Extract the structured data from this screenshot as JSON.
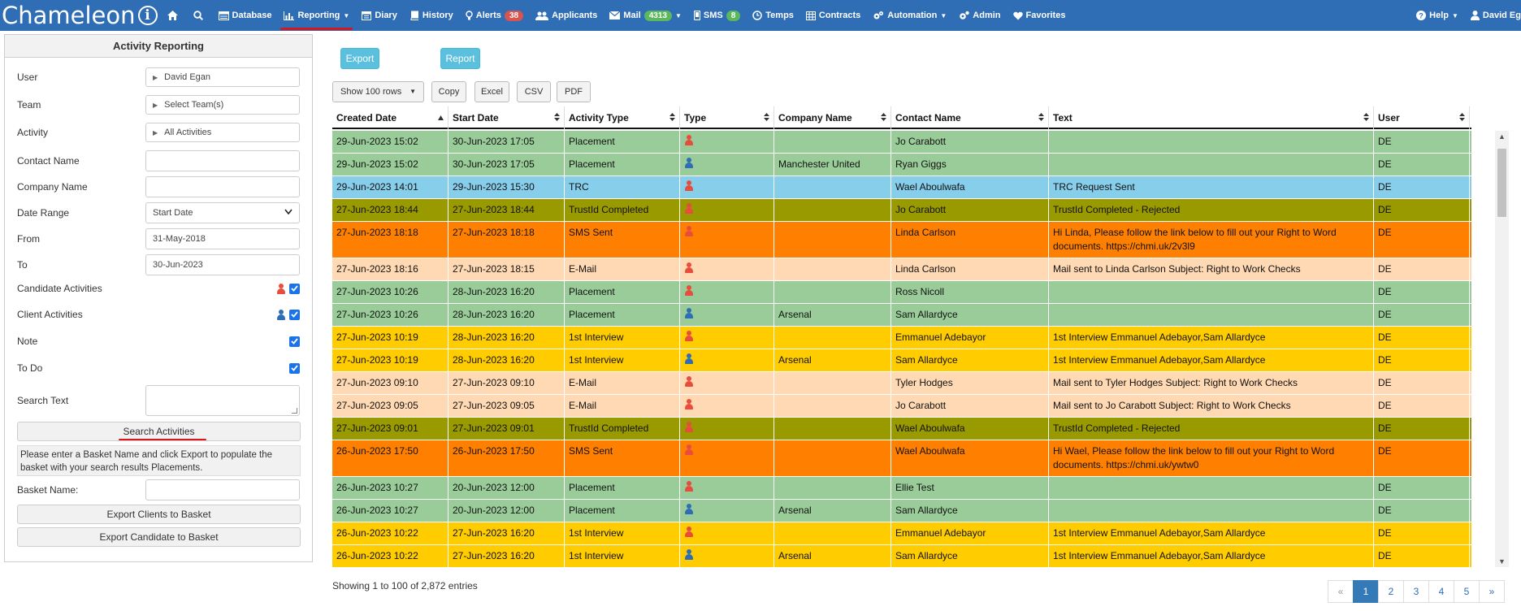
{
  "app": {
    "logo_text": "Chameleon",
    "logo_badge": "i"
  },
  "nav": {
    "items": [
      {
        "icon": "home-icon",
        "label": ""
      },
      {
        "icon": "search-icon",
        "label": ""
      },
      {
        "icon": "database-icon",
        "label": "Database"
      },
      {
        "icon": "chart-icon",
        "label": "Reporting",
        "dropdown": true,
        "active": true
      },
      {
        "icon": "calendar-icon",
        "label": "Diary"
      },
      {
        "icon": "book-icon",
        "label": "History"
      },
      {
        "icon": "bulb-icon",
        "label": "Alerts",
        "badge": "38",
        "badge_color": "red"
      },
      {
        "icon": "users-icon",
        "label": "Applicants"
      },
      {
        "icon": "envelope-icon",
        "label": "Mail",
        "badge": "4313",
        "badge_color": "green",
        "dropdown": true
      },
      {
        "icon": "mobile-icon",
        "label": "SMS",
        "badge": "8",
        "badge_color": "green"
      },
      {
        "icon": "clock-icon",
        "label": "Temps"
      },
      {
        "icon": "table-icon",
        "label": "Contracts"
      },
      {
        "icon": "cogs-icon",
        "label": "Automation",
        "dropdown": true
      },
      {
        "icon": "gear-icon",
        "label": "Admin"
      },
      {
        "icon": "heart-icon",
        "label": "Favorites"
      }
    ],
    "help_label": "Help",
    "user_label": "David Eg"
  },
  "sidebar": {
    "title": "Activity Reporting",
    "user_label": "User",
    "user_value": "David Egan",
    "team_label": "Team",
    "team_value": "Select Team(s)",
    "activity_label": "Activity",
    "activity_value": "All Activities",
    "contact_label": "Contact Name",
    "contact_value": "",
    "company_label": "Company Name",
    "company_value": "",
    "date_range_label": "Date Range",
    "date_range_value": "Start Date",
    "from_label": "From",
    "from_value": "31-May-2018",
    "to_label": "To",
    "to_value": "30-Jun-2023",
    "candidate_label": "Candidate Activities",
    "client_label": "Client Activities",
    "note_label": "Note",
    "todo_label": "To Do",
    "search_text_label": "Search Text",
    "search_button": "Search Activities",
    "info_text": "Please enter a Basket Name and click Export to populate the basket with your search results Placements.",
    "basket_label": "Basket Name:",
    "export_clients_button": "Export Clients to Basket",
    "export_candidate_button": "Export Candidate to Basket"
  },
  "toolbar": {
    "export_button": "Export",
    "report_button": "Report",
    "show_rows": "Show 100 rows",
    "copy": "Copy",
    "excel": "Excel",
    "csv": "CSV",
    "pdf": "PDF"
  },
  "table": {
    "columns": [
      "Created Date",
      "Start Date",
      "Activity Type",
      "Type",
      "Company Name",
      "Contact Name",
      "Text",
      "User"
    ],
    "rows": [
      {
        "created": "29-Jun-2023 15:02",
        "start": "30-Jun-2023 17:05",
        "activity": "Placement",
        "kind": "candidate",
        "company": "",
        "contact": "Jo Carabott",
        "text": "",
        "user": "DE",
        "class": "placement"
      },
      {
        "created": "29-Jun-2023 15:02",
        "start": "30-Jun-2023 17:05",
        "activity": "Placement",
        "kind": "client",
        "company": "Manchester United",
        "contact": "Ryan Giggs",
        "text": "",
        "user": "DE",
        "class": "placement"
      },
      {
        "created": "29-Jun-2023 14:01",
        "start": "29-Jun-2023 15:30",
        "activity": "TRC",
        "kind": "candidate",
        "company": "",
        "contact": "Wael Aboulwafa",
        "text": "TRC Request Sent",
        "user": "DE",
        "class": "trc"
      },
      {
        "created": "27-Jun-2023 18:44",
        "start": "27-Jun-2023 18:44",
        "activity": "TrustId Completed",
        "kind": "candidate",
        "company": "",
        "contact": "Jo Carabott",
        "text": "TrustId Completed - Rejected",
        "user": "DE",
        "class": "trustid"
      },
      {
        "created": "27-Jun-2023 18:18",
        "start": "27-Jun-2023 18:18",
        "activity": "SMS Sent",
        "kind": "candidate",
        "company": "",
        "contact": "Linda Carlson",
        "text": "Hi Linda, Please follow the link below to fill out your Right to Word documents. https://chmi.uk/2v3l9",
        "user": "DE",
        "class": "sms"
      },
      {
        "created": "27-Jun-2023 18:16",
        "start": "27-Jun-2023 18:15",
        "activity": "E-Mail",
        "kind": "candidate",
        "company": "",
        "contact": "Linda Carlson",
        "text": "Mail sent to Linda Carlson Subject: Right to Work Checks",
        "user": "DE",
        "class": "email"
      },
      {
        "created": "27-Jun-2023 10:26",
        "start": "28-Jun-2023 16:20",
        "activity": "Placement",
        "kind": "candidate",
        "company": "",
        "contact": "Ross Nicoll",
        "text": "",
        "user": "DE",
        "class": "placement"
      },
      {
        "created": "27-Jun-2023 10:26",
        "start": "28-Jun-2023 16:20",
        "activity": "Placement",
        "kind": "client",
        "company": "Arsenal",
        "contact": "Sam Allardyce",
        "text": "",
        "user": "DE",
        "class": "placement"
      },
      {
        "created": "27-Jun-2023 10:19",
        "start": "28-Jun-2023 16:20",
        "activity": "1st Interview",
        "kind": "candidate",
        "company": "",
        "contact": "Emmanuel Adebayor",
        "text": "1st Interview Emmanuel Adebayor,Sam Allardyce",
        "user": "DE",
        "class": "interview"
      },
      {
        "created": "27-Jun-2023 10:19",
        "start": "28-Jun-2023 16:20",
        "activity": "1st Interview",
        "kind": "client",
        "company": "Arsenal",
        "contact": "Sam Allardyce",
        "text": "1st Interview Emmanuel Adebayor,Sam Allardyce",
        "user": "DE",
        "class": "interview"
      },
      {
        "created": "27-Jun-2023 09:10",
        "start": "27-Jun-2023 09:10",
        "activity": "E-Mail",
        "kind": "candidate",
        "company": "",
        "contact": "Tyler Hodges",
        "text": "Mail sent to Tyler Hodges Subject: Right to Work Checks",
        "user": "DE",
        "class": "email"
      },
      {
        "created": "27-Jun-2023 09:05",
        "start": "27-Jun-2023 09:05",
        "activity": "E-Mail",
        "kind": "candidate",
        "company": "",
        "contact": "Jo Carabott",
        "text": "Mail sent to Jo Carabott Subject: Right to Work Checks",
        "user": "DE",
        "class": "email"
      },
      {
        "created": "27-Jun-2023 09:01",
        "start": "27-Jun-2023 09:01",
        "activity": "TrustId Completed",
        "kind": "candidate",
        "company": "",
        "contact": "Wael Aboulwafa",
        "text": "TrustId Completed - Rejected",
        "user": "DE",
        "class": "trustid"
      },
      {
        "created": "26-Jun-2023 17:50",
        "start": "26-Jun-2023 17:50",
        "activity": "SMS Sent",
        "kind": "candidate",
        "company": "",
        "contact": "Wael Aboulwafa",
        "text": "Hi Wael, Please follow the link below to fill out your Right to Word documents. https://chmi.uk/ywtw0",
        "user": "DE",
        "class": "sms"
      },
      {
        "created": "26-Jun-2023 10:27",
        "start": "20-Jun-2023 12:00",
        "activity": "Placement",
        "kind": "candidate",
        "company": "",
        "contact": "Ellie Test",
        "text": "",
        "user": "DE",
        "class": "placement"
      },
      {
        "created": "26-Jun-2023 10:27",
        "start": "20-Jun-2023 12:00",
        "activity": "Placement",
        "kind": "client",
        "company": "Arsenal",
        "contact": "Sam Allardyce",
        "text": "",
        "user": "DE",
        "class": "placement"
      },
      {
        "created": "26-Jun-2023 10:22",
        "start": "27-Jun-2023 16:20",
        "activity": "1st Interview",
        "kind": "candidate",
        "company": "",
        "contact": "Emmanuel Adebayor",
        "text": "1st Interview Emmanuel Adebayor,Sam Allardyce",
        "user": "DE",
        "class": "interview"
      },
      {
        "created": "26-Jun-2023 10:22",
        "start": "27-Jun-2023 16:20",
        "activity": "1st Interview",
        "kind": "client",
        "company": "Arsenal",
        "contact": "Sam Allardyce",
        "text": "1st Interview Emmanuel Adebayor,Sam Allardyce",
        "user": "DE",
        "class": "interview"
      }
    ],
    "info": "Showing 1 to 100 of 2,872 entries",
    "pager": [
      "«",
      "1",
      "2",
      "3",
      "4",
      "5",
      "»"
    ],
    "pager_active": "1"
  },
  "colors": {
    "nav_bg": "#2f6db5",
    "placement": "#99cc99",
    "trc": "#87ceeb",
    "trustid": "#999900",
    "sms": "#ff8000",
    "email": "#ffd9b3",
    "interview": "#ffcc00"
  }
}
